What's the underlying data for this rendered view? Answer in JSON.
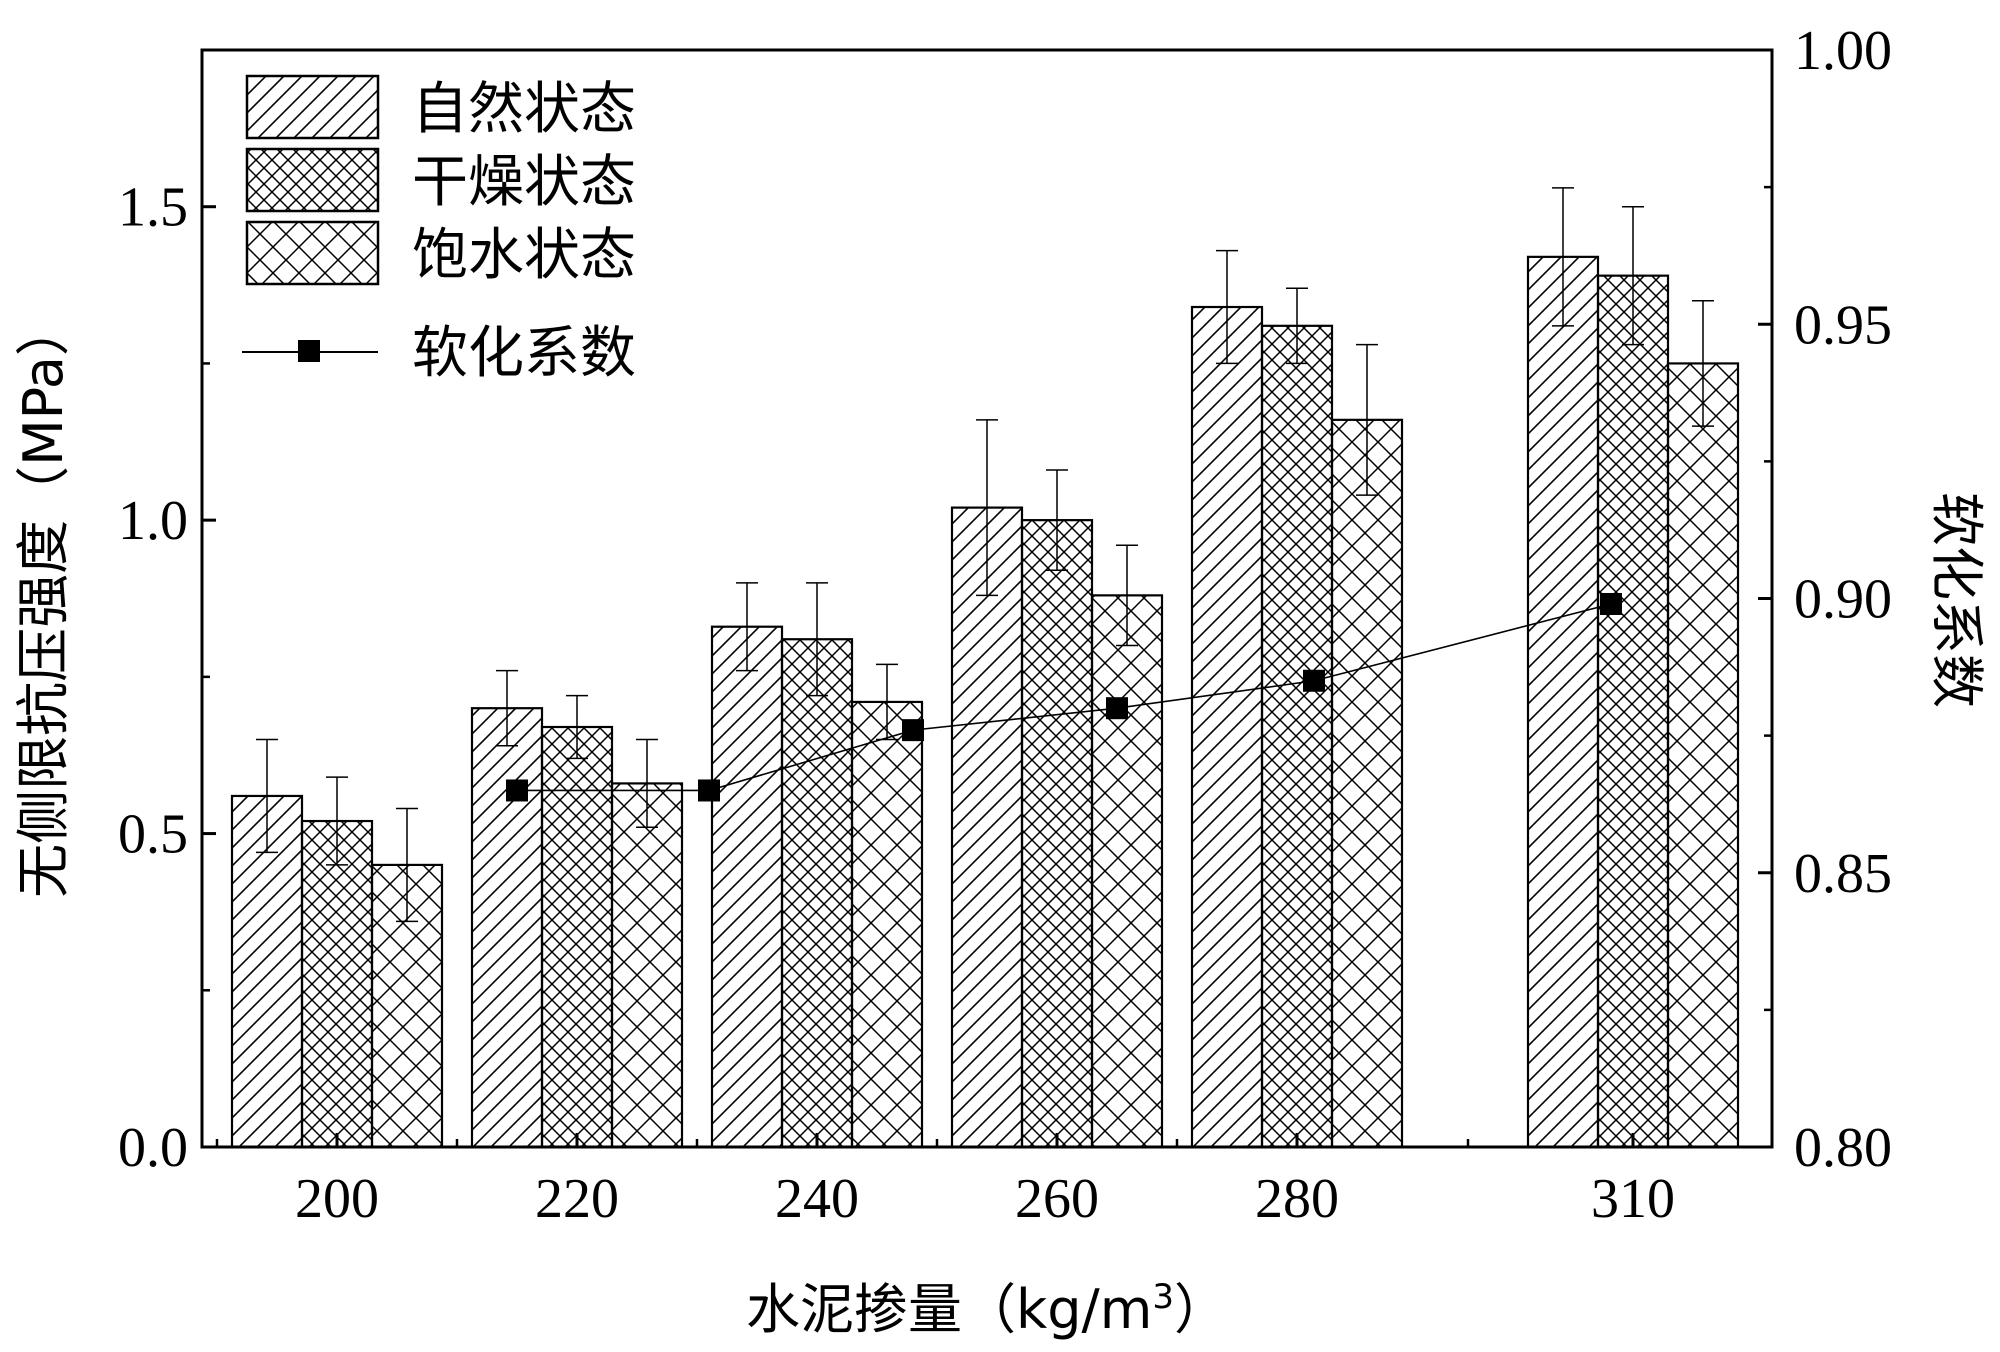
{
  "chart_data": {
    "type": "bar",
    "title": "",
    "xlabel": "水泥掺量（kg/m³）",
    "xlabel_main": "水泥掺量（kg/m",
    "xlabel_sup": "3",
    "xlabel_end": "）",
    "ylabel": "无侧限抗压强度（MPa）",
    "y2label": "软化系数",
    "categories": [
      "200",
      "220",
      "240",
      "260",
      "280",
      "310"
    ],
    "ylim": [
      0,
      1.75
    ],
    "yticks": [
      "0.0",
      "0.5",
      "1.0",
      "1.5"
    ],
    "y2lim": [
      0.8,
      1.0
    ],
    "y2ticks": [
      "0.80",
      "0.85",
      "0.90",
      "0.95",
      "1.00"
    ],
    "series": [
      {
        "name": "自然状态",
        "pattern": "diagonal",
        "values": [
          0.56,
          0.7,
          0.83,
          1.02,
          1.34,
          1.42
        ],
        "errors": [
          0.09,
          0.06,
          0.07,
          0.14,
          0.09,
          0.11
        ]
      },
      {
        "name": "干燥状态",
        "pattern": "dense-cross",
        "values": [
          0.52,
          0.67,
          0.81,
          1.0,
          1.31,
          1.39
        ],
        "errors": [
          0.07,
          0.05,
          0.09,
          0.08,
          0.06,
          0.11
        ]
      },
      {
        "name": "饱水状态",
        "pattern": "cross",
        "values": [
          0.45,
          0.58,
          0.71,
          0.88,
          1.16,
          1.25
        ],
        "errors": [
          0.09,
          0.07,
          0.06,
          0.08,
          0.12,
          0.1
        ]
      }
    ],
    "line_series": {
      "name": "软化系数",
      "axis": "right",
      "points": [
        {
          "x": 215,
          "y": 0.865
        },
        {
          "x": 231,
          "y": 0.865
        },
        {
          "x": 248,
          "y": 0.876
        },
        {
          "x": 265,
          "y": 0.88
        },
        {
          "x": 281,
          "y": 0.885
        },
        {
          "x": 308,
          "y": 0.899
        }
      ]
    },
    "legend_position": "top-left",
    "colors": {
      "ink": "#000000",
      "bar_fill": "#ffffff"
    }
  }
}
